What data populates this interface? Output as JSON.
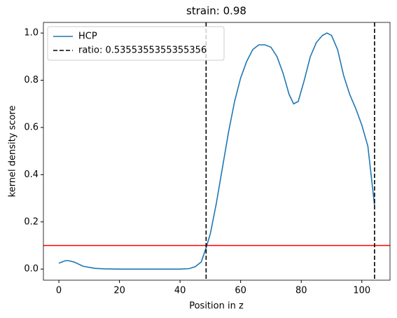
{
  "chart_data": {
    "type": "line",
    "title": "strain: 0.98",
    "xlabel": "Position in z",
    "ylabel": "kernel density score",
    "x": [
      0,
      2,
      3,
      5,
      8,
      12,
      15,
      20,
      30,
      40,
      43,
      45,
      47,
      48.6,
      50,
      52,
      54,
      56,
      58,
      60,
      62,
      64,
      66,
      68,
      70,
      72,
      74,
      76,
      77.5,
      79,
      81,
      83,
      85,
      87,
      88.5,
      90,
      92,
      94,
      96,
      98,
      100,
      102,
      104.2
    ],
    "series": [
      {
        "name": "HCP",
        "color": "#1f77b4",
        "values": [
          0.025,
          0.035,
          0.036,
          0.03,
          0.012,
          0.003,
          0.001,
          0,
          0,
          0,
          0.002,
          0.01,
          0.03,
          0.09,
          0.15,
          0.28,
          0.43,
          0.58,
          0.71,
          0.81,
          0.88,
          0.93,
          0.95,
          0.95,
          0.94,
          0.9,
          0.83,
          0.74,
          0.7,
          0.71,
          0.8,
          0.9,
          0.96,
          0.99,
          1.0,
          0.99,
          0.93,
          0.82,
          0.74,
          0.68,
          0.61,
          0.52,
          0.27
        ]
      }
    ],
    "vlines": {
      "name": "ratio: 0.5355355355355356",
      "color": "#000000",
      "x": [
        48.6,
        104.2
      ]
    },
    "hline": {
      "y": 0.1,
      "color": "#ff0000"
    },
    "xlim": [
      -5.1,
      109.3
    ],
    "ylim": [
      -0.047,
      1.045
    ],
    "xticks": [
      0,
      20,
      40,
      60,
      80,
      100
    ],
    "yticks": [
      {
        "value": 0,
        "label": "0.0"
      },
      0.2,
      0.4,
      0.6,
      0.8,
      {
        "value": 1,
        "label": "1.0"
      }
    ],
    "legend": "upper left"
  }
}
